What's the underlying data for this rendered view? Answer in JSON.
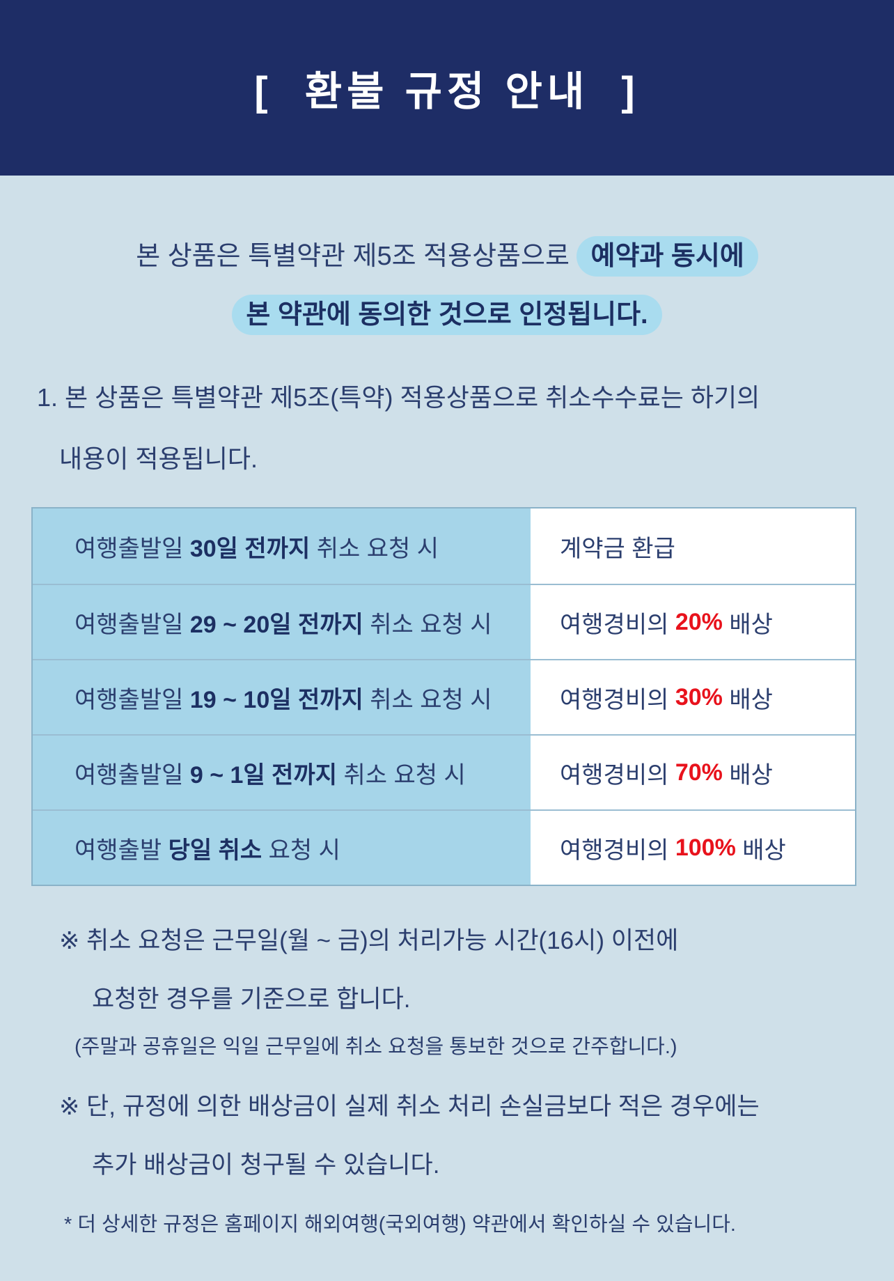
{
  "colors": {
    "header-bg": "#1e2d66",
    "body-bg": "#cfe0e9",
    "highlight": "#a9dcef",
    "table-left-bg": "#a6d5e9",
    "table-border": "#8ab2c8",
    "row-border": "#9abdd2",
    "text-navy": "#2b3e6e",
    "bold-navy": "#1c2f62",
    "accent-red": "#e8121c"
  },
  "header": {
    "title": "[  환불 규정 안내  ]"
  },
  "intro": {
    "line1_normal": "본 상품은 특별약관 제5조 적용상품으로 ",
    "line1_highlight": "예약과 동시에",
    "line2_highlight": "본 약관에 동의한 것으로 인정됩니다."
  },
  "clause": {
    "line1": "1. 본 상품은 특별약관 제5조(특약) 적용상품으로 취소수수료는 하기의",
    "line2": "내용이 적용됩니다."
  },
  "table": {
    "rows": [
      {
        "left": {
          "pre": "여행출발일 ",
          "bold": "30일 전까지",
          "post": " 취소 요청 시"
        },
        "right": {
          "pre": "계약금 환급",
          "em": "",
          "post": ""
        }
      },
      {
        "left": {
          "pre": "여행출발일 ",
          "bold": "29 ~ 20일 전까지",
          "post": " 취소 요청 시"
        },
        "right": {
          "pre": "여행경비의 ",
          "em": "20%",
          "post": " 배상"
        }
      },
      {
        "left": {
          "pre": "여행출발일 ",
          "bold": "19 ~ 10일 전까지",
          "post": " 취소 요청 시"
        },
        "right": {
          "pre": "여행경비의 ",
          "em": "30%",
          "post": " 배상"
        }
      },
      {
        "left": {
          "pre": "여행출발일 ",
          "bold": "9 ~ 1일 전까지",
          "post": " 취소 요청 시"
        },
        "right": {
          "pre": "여행경비의 ",
          "em": "70%",
          "post": " 배상"
        }
      },
      {
        "left": {
          "pre": "여행출발 ",
          "bold": "당일 취소",
          "post": " 요청 시"
        },
        "right": {
          "pre": "여행경비의 ",
          "em": "100%",
          "post": " 배상"
        }
      }
    ]
  },
  "notes": {
    "note1_line1": "※ 취소 요청은 근무일(월 ~ 금)의 처리가능 시간(16시) 이전에",
    "note1_line2": "요청한 경우를 기준으로 합니다.",
    "note1_sub": "(주말과 공휴일은 익일 근무일에 취소 요청을 통보한 것으로 간주합니다.)",
    "note2_line1": "※ 단, 규정에 의한 배상금이 실제 취소 처리 손실금보다 적은 경우에는",
    "note2_line2": "추가 배상금이 청구될 수 있습니다.",
    "footnote": "* 더 상세한 규정은 홈페이지 해외여행(국외여행) 약관에서 확인하실 수 있습니다."
  }
}
